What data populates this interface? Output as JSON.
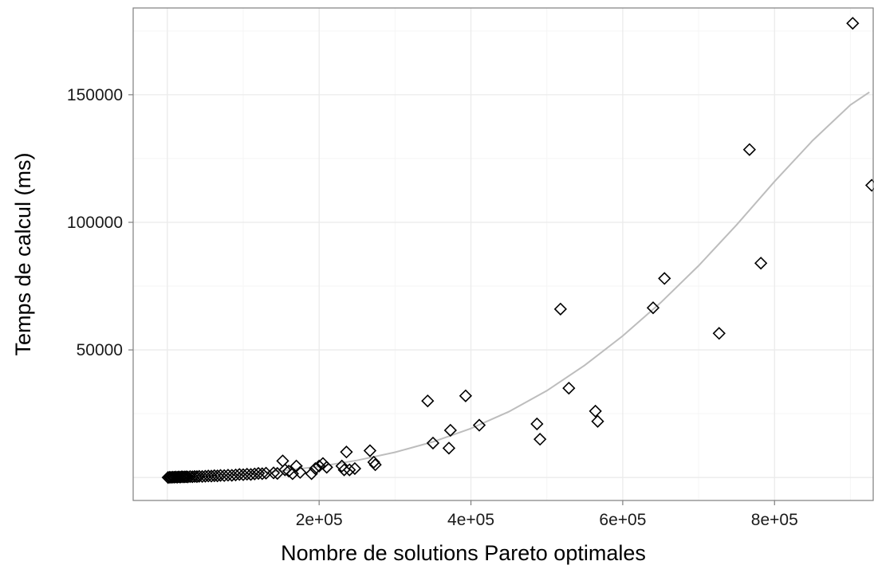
{
  "chart_data": {
    "type": "scatter",
    "title": "",
    "xlabel": "Nombre de solutions Pareto optimales",
    "ylabel": "Temps de calcul (ms)",
    "xlim": [
      -45000,
      930000
    ],
    "ylim": [
      -9000,
      184000
    ],
    "x_ticks": [
      200000,
      400000,
      600000,
      800000
    ],
    "x_tick_labels": [
      "2e+05",
      "4e+05",
      "6e+05",
      "8e+05"
    ],
    "y_ticks": [
      50000,
      100000,
      150000
    ],
    "y_tick_labels": [
      "50000",
      "100000",
      "150000"
    ],
    "grid": true,
    "legend": "none",
    "colors": {
      "points": "#000000",
      "trend": "#bdbdbd",
      "grid": "#ebebeb",
      "border": "#7f7f7f"
    },
    "marker": "diamond",
    "series": [
      {
        "points": [
          [
            1000,
            0
          ],
          [
            3000,
            100
          ],
          [
            5000,
            50
          ],
          [
            7000,
            150
          ],
          [
            9000,
            100
          ],
          [
            11000,
            200
          ],
          [
            13000,
            100
          ],
          [
            15000,
            250
          ],
          [
            17000,
            150
          ],
          [
            19000,
            300
          ],
          [
            21000,
            200
          ],
          [
            23000,
            250
          ],
          [
            25000,
            300
          ],
          [
            27000,
            200
          ],
          [
            30000,
            350
          ],
          [
            33000,
            300
          ],
          [
            36000,
            400
          ],
          [
            39000,
            350
          ],
          [
            42000,
            450
          ],
          [
            46000,
            400
          ],
          [
            50000,
            500
          ],
          [
            54000,
            600
          ],
          [
            58000,
            550
          ],
          [
            62000,
            700
          ],
          [
            66000,
            650
          ],
          [
            70000,
            800
          ],
          [
            75000,
            750
          ],
          [
            80000,
            900
          ],
          [
            85000,
            850
          ],
          [
            90000,
            1000
          ],
          [
            95000,
            1200
          ],
          [
            100000,
            1100
          ],
          [
            105000,
            1300
          ],
          [
            110000,
            1200
          ],
          [
            115000,
            1400
          ],
          [
            120000,
            1600
          ],
          [
            125000,
            1500
          ],
          [
            130000,
            1700
          ],
          [
            140000,
            1800
          ],
          [
            145000,
            1600
          ],
          [
            152000,
            6500
          ],
          [
            155000,
            3000
          ],
          [
            160000,
            2500
          ],
          [
            165000,
            1500
          ],
          [
            170000,
            4500
          ],
          [
            175000,
            2000
          ],
          [
            190000,
            1500
          ],
          [
            195000,
            3500
          ],
          [
            200000,
            4500
          ],
          [
            205000,
            5500
          ],
          [
            210000,
            4000
          ],
          [
            230000,
            4500
          ],
          [
            233000,
            3000
          ],
          [
            236000,
            10000
          ],
          [
            240000,
            3000
          ],
          [
            247000,
            3500
          ],
          [
            267000,
            10500
          ],
          [
            272000,
            6000
          ],
          [
            274000,
            5000
          ],
          [
            343000,
            30000
          ],
          [
            350000,
            13500
          ],
          [
            371000,
            11500
          ],
          [
            373000,
            18500
          ],
          [
            393000,
            32000
          ],
          [
            411000,
            20500
          ],
          [
            487000,
            21000
          ],
          [
            491000,
            15000
          ],
          [
            518000,
            66000
          ],
          [
            529000,
            35000
          ],
          [
            564000,
            26000
          ],
          [
            567000,
            22000
          ],
          [
            640000,
            66500
          ],
          [
            655000,
            78000
          ],
          [
            727000,
            56500
          ],
          [
            767000,
            128500
          ],
          [
            782000,
            84000
          ],
          [
            903000,
            178000
          ],
          [
            928000,
            114500
          ]
        ]
      }
    ],
    "trend_line": {
      "x": [
        0,
        50000,
        100000,
        150000,
        200000,
        250000,
        300000,
        350000,
        400000,
        450000,
        500000,
        550000,
        600000,
        650000,
        700000,
        750000,
        800000,
        850000,
        900000,
        925000
      ],
      "y": [
        0,
        600,
        1400,
        2600,
        4300,
        6700,
        9900,
        14000,
        19200,
        25800,
        34000,
        44000,
        55500,
        68500,
        83000,
        99000,
        116000,
        132000,
        146000,
        151000
      ]
    }
  }
}
